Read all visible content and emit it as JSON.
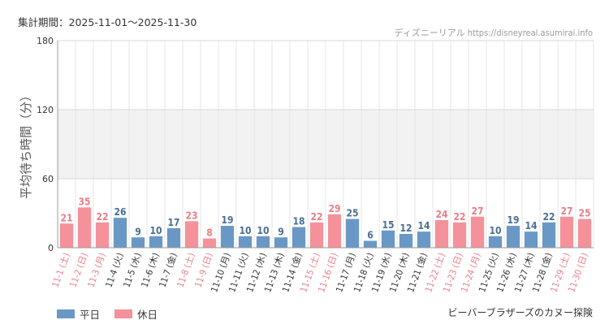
{
  "header": {
    "period_label": "集計期間：2025-11-01～2025-11-30",
    "source": "ディズニーリアル https://disneyreal.asumirai.info"
  },
  "footer": {
    "attraction": "ビーバーブラザーズのカヌー探険"
  },
  "legend": {
    "weekday_label": "平日",
    "holiday_label": "休日"
  },
  "colors": {
    "weekday": "#6a98c6",
    "holiday": "#f5919a",
    "weekday_text": "#4a6f93",
    "holiday_text": "#ea7d87",
    "band": "#f2f2f2"
  },
  "chart_data": {
    "type": "bar",
    "ylabel": "平均待ち時間（分）",
    "ylim": [
      0,
      180
    ],
    "yticks": [
      0,
      60,
      120,
      180
    ],
    "shaded_bands": [
      [
        60,
        120
      ]
    ],
    "series": [
      {
        "name": "平日",
        "key": "weekday"
      },
      {
        "name": "休日",
        "key": "holiday"
      }
    ],
    "categories": [
      "11-1 (土)",
      "11-2 (日)",
      "11-3 (月)",
      "11-4 (火)",
      "11-5 (水)",
      "11-6 (木)",
      "11-7 (金)",
      "11-8 (土)",
      "11-9 (日)",
      "11-10 (月)",
      "11-11 (火)",
      "11-12 (水)",
      "11-13 (木)",
      "11-14 (金)",
      "11-15 (土)",
      "11-16 (日)",
      "11-17 (月)",
      "11-18 (火)",
      "11-19 (水)",
      "11-20 (木)",
      "11-21 (金)",
      "11-22 (土)",
      "11-23 (日)",
      "11-24 (月)",
      "11-25 (火)",
      "11-26 (水)",
      "11-27 (木)",
      "11-28 (金)",
      "11-29 (土)",
      "11-30 (日)"
    ],
    "values": [
      21,
      35,
      22,
      26,
      9,
      10,
      17,
      23,
      8,
      19,
      10,
      10,
      9,
      18,
      22,
      29,
      25,
      6,
      15,
      12,
      14,
      24,
      22,
      27,
      10,
      19,
      14,
      22,
      27,
      25
    ],
    "day_type": [
      "holiday",
      "holiday",
      "holiday",
      "weekday",
      "weekday",
      "weekday",
      "weekday",
      "holiday",
      "holiday",
      "weekday",
      "weekday",
      "weekday",
      "weekday",
      "weekday",
      "holiday",
      "holiday",
      "weekday",
      "weekday",
      "weekday",
      "weekday",
      "weekday",
      "holiday",
      "holiday",
      "holiday",
      "weekday",
      "weekday",
      "weekday",
      "weekday",
      "holiday",
      "holiday"
    ]
  }
}
